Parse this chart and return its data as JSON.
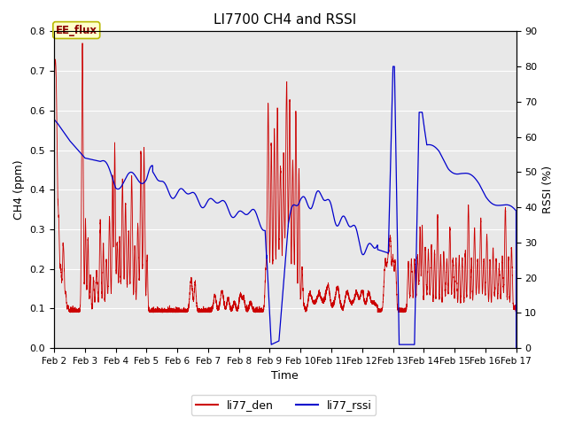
{
  "title": "LI7700 CH4 and RSSI",
  "xlabel": "Time",
  "ylabel_left": "CH4 (ppm)",
  "ylabel_right": "RSSI (%)",
  "ylim_left": [
    0.0,
    0.8
  ],
  "ylim_right": [
    0,
    90
  ],
  "yticks_left": [
    0.0,
    0.1,
    0.2,
    0.3,
    0.4,
    0.5,
    0.6,
    0.7,
    0.8
  ],
  "yticks_right": [
    0,
    10,
    20,
    30,
    40,
    50,
    60,
    70,
    80,
    90
  ],
  "fig_bg_color": "#ffffff",
  "plot_bg_color": "#e8e8e8",
  "annotation_text": "EE_flux",
  "annotation_color": "#8B0000",
  "annotation_bg": "#ffffcc",
  "annotation_edge": "#b8b800",
  "color_ch4": "#cc0000",
  "color_rssi": "#0000cc",
  "legend_ch4": "li77_den",
  "legend_rssi": "li77_rssi",
  "x_tick_labels": [
    "Feb 2",
    "Feb 3",
    "Feb 4",
    "Feb 5",
    "Feb 6",
    "Feb 7",
    "Feb 8",
    "Feb 9",
    "Feb 10",
    "Feb 11",
    "Feb 12",
    "Feb 13",
    "Feb 14",
    "Feb 15",
    "Feb 16",
    "Feb 17"
  ],
  "x_tick_positions": [
    2,
    3,
    4,
    5,
    6,
    7,
    8,
    9,
    10,
    11,
    12,
    13,
    14,
    15,
    16,
    17
  ],
  "grid_color": "#ffffff",
  "title_fontsize": 11,
  "label_fontsize": 9,
  "tick_fontsize": 8
}
